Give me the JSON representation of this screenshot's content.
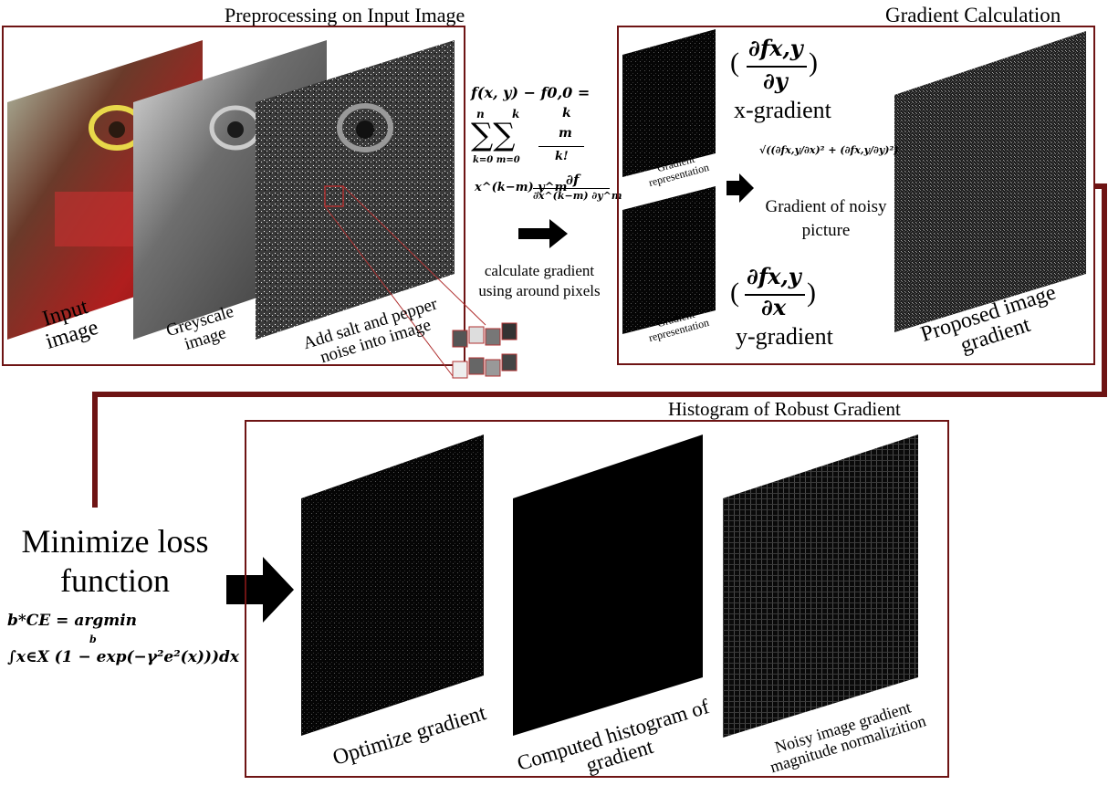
{
  "sections": {
    "preprocessing_title": "Preprocessing on Input Image",
    "gradient_title": "Gradient Calculation",
    "histogram_title": "Histogram of Robust Gradient"
  },
  "preprocessing": {
    "input_label_1": "Input",
    "input_label_2": "image",
    "grey_label_1": "Greyscale",
    "grey_label_2": "image",
    "noise_label_1": "Add salt and pepper",
    "noise_label_2": "noise into image"
  },
  "taylor": {
    "line1": "f(x, y) − f0,0 =",
    "sum_n": "n",
    "sum_k": "k",
    "sum_sym": "∑∑",
    "sum_low": "k=0  m=0",
    "binom_k": "k",
    "binom_m": "m",
    "kfact": "k!",
    "line3": "x^(k−m) y^m",
    "partial_top": "∂f",
    "partial_bottom": "∂x^(k−m) ∂y^m",
    "caption_1": "calculate gradient",
    "caption_2": "using around pixels"
  },
  "gradient": {
    "rep_label_1": "Gradient",
    "rep_label_2": "representation",
    "x_formula_num": "∂fx,y",
    "x_formula_den": "∂y",
    "x_label": "x-gradient",
    "y_formula_num": "∂fx,y",
    "y_formula_den": "∂x",
    "y_label": "y-gradient",
    "mag_formula": "√((∂fx,y/∂x)² + (∂fx,y/∂y)²)",
    "noisy_1": "Gradient of noisy",
    "noisy_2": "picture",
    "proposed_1": "Proposed image",
    "proposed_2": "gradient"
  },
  "histogram": {
    "opt_label": "Optimize gradient",
    "comp_label_1": "Computed histogram of",
    "comp_label_2": "gradient",
    "norm_label_1": "Noisy image gradient",
    "norm_label_2": "magnitude normalizition"
  },
  "loss": {
    "title_1": "Minimize loss",
    "title_2": "function",
    "formula_1": "b*CE = argmin",
    "formula_sub": "b",
    "formula_2": "∫x∈X (1 − exp(−γ²e²(x)))dx"
  },
  "colors": {
    "frame": "#6e1414",
    "connector": "#6e1414"
  }
}
